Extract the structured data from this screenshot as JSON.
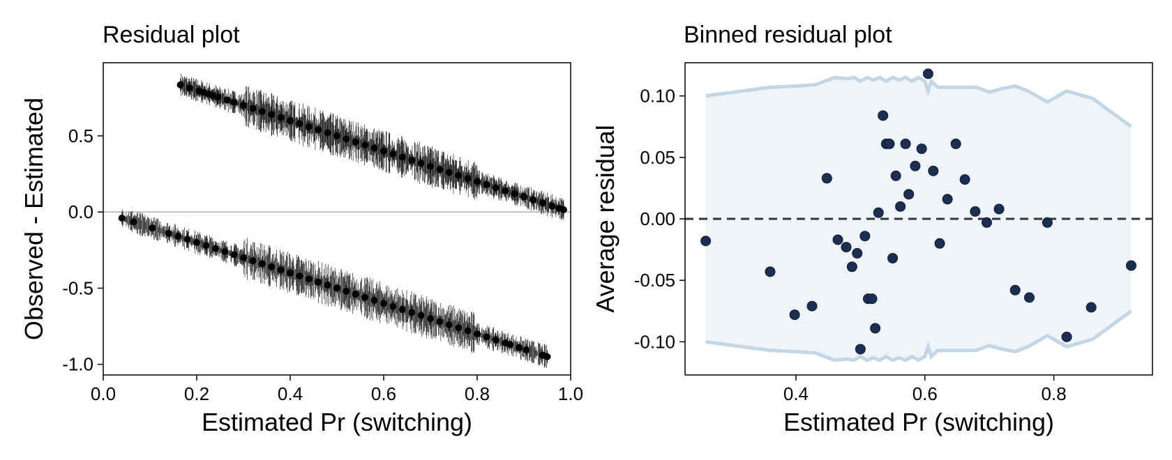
{
  "chart_data": [
    {
      "type": "scatter",
      "title": "Residual plot",
      "xlabel": "Estimated Pr (switching)",
      "ylabel": "Observed - Estimated",
      "xlim": [
        0.0,
        1.0
      ],
      "ylim": [
        -1.07,
        0.98
      ],
      "xticks": [
        "0.0",
        "0.2",
        "0.4",
        "0.6",
        "0.8",
        "1.0"
      ],
      "xtick_values": [
        0.0,
        0.2,
        0.4,
        0.6,
        0.8,
        1.0
      ],
      "yticks": [
        "-1.0",
        "-0.5",
        "0.0",
        "0.5"
      ],
      "ytick_values": [
        -1.0,
        -0.5,
        0.0,
        0.5
      ],
      "reference_line_y": 0.0,
      "grid": false,
      "marker_color": "#000000",
      "reference_line_color": "#b0b0b0",
      "series": [
        {
          "description": "observed = 1 (residual = 1 - estimated)",
          "x": [
            0.165,
            0.185,
            0.205,
            0.215,
            0.225,
            0.235,
            0.245,
            0.265,
            0.28,
            0.3,
            0.32,
            0.34,
            0.36,
            0.38,
            0.4,
            0.42,
            0.44,
            0.46,
            0.48,
            0.5,
            0.52,
            0.54,
            0.56,
            0.58,
            0.6,
            0.62,
            0.64,
            0.66,
            0.68,
            0.7,
            0.72,
            0.74,
            0.76,
            0.78,
            0.8,
            0.82,
            0.84,
            0.86,
            0.88,
            0.9,
            0.92,
            0.94,
            0.96,
            0.975,
            0.985
          ],
          "y": [
            0.835,
            0.815,
            0.795,
            0.785,
            0.775,
            0.765,
            0.755,
            0.735,
            0.72,
            0.7,
            0.68,
            0.66,
            0.64,
            0.62,
            0.6,
            0.58,
            0.56,
            0.54,
            0.52,
            0.5,
            0.48,
            0.46,
            0.44,
            0.42,
            0.4,
            0.38,
            0.36,
            0.34,
            0.32,
            0.3,
            0.28,
            0.26,
            0.24,
            0.22,
            0.2,
            0.18,
            0.16,
            0.14,
            0.12,
            0.1,
            0.08,
            0.06,
            0.04,
            0.025,
            0.015
          ]
        },
        {
          "description": "observed = 0 (residual = -estimated)",
          "x": [
            0.04,
            0.065,
            0.105,
            0.14,
            0.16,
            0.18,
            0.2,
            0.22,
            0.24,
            0.26,
            0.28,
            0.3,
            0.32,
            0.34,
            0.36,
            0.38,
            0.4,
            0.42,
            0.44,
            0.46,
            0.48,
            0.5,
            0.52,
            0.54,
            0.56,
            0.58,
            0.6,
            0.62,
            0.64,
            0.66,
            0.68,
            0.7,
            0.72,
            0.74,
            0.76,
            0.78,
            0.8,
            0.82,
            0.84,
            0.86,
            0.87,
            0.89,
            0.905,
            0.94,
            0.95
          ],
          "y": [
            -0.04,
            -0.065,
            -0.105,
            -0.14,
            -0.16,
            -0.18,
            -0.2,
            -0.22,
            -0.24,
            -0.26,
            -0.28,
            -0.3,
            -0.32,
            -0.34,
            -0.36,
            -0.38,
            -0.4,
            -0.42,
            -0.44,
            -0.46,
            -0.48,
            -0.5,
            -0.52,
            -0.54,
            -0.56,
            -0.58,
            -0.6,
            -0.62,
            -0.64,
            -0.66,
            -0.68,
            -0.7,
            -0.72,
            -0.74,
            -0.76,
            -0.78,
            -0.8,
            -0.82,
            -0.84,
            -0.86,
            -0.87,
            -0.89,
            -0.905,
            -0.94,
            -0.95
          ]
        }
      ]
    },
    {
      "type": "scatter",
      "title": "Binned residual plot",
      "xlabel": "Estimated Pr (switching)",
      "ylabel": "Average residual",
      "xlim": [
        0.228,
        0.953
      ],
      "ylim": [
        -0.127,
        0.127
      ],
      "xticks": [
        "0.4",
        "0.6",
        "0.8"
      ],
      "xtick_values": [
        0.4,
        0.6,
        0.8
      ],
      "yticks": [
        "0.10",
        "0.05",
        "0.00",
        "-0.05",
        "-0.10"
      ],
      "ytick_values": [
        0.1,
        0.05,
        0.0,
        -0.05,
        -0.1
      ],
      "reference_line_y": 0.0,
      "reference_line_style": "dashed",
      "grid": false,
      "point_color": "#1b2f52",
      "band_fill_color": "#eff4f8",
      "band_line_color": "#c2d6e6",
      "band": {
        "x": [
          0.26,
          0.36,
          0.4,
          0.43,
          0.45,
          0.46,
          0.48,
          0.49,
          0.5,
          0.51,
          0.52,
          0.53,
          0.54,
          0.55,
          0.56,
          0.57,
          0.58,
          0.59,
          0.6,
          0.605,
          0.61,
          0.62,
          0.64,
          0.66,
          0.68,
          0.7,
          0.72,
          0.74,
          0.76,
          0.79,
          0.82,
          0.86,
          0.92
        ],
        "upper": [
          0.1,
          0.107,
          0.108,
          0.109,
          0.113,
          0.115,
          0.114,
          0.115,
          0.112,
          0.115,
          0.113,
          0.115,
          0.112,
          0.115,
          0.113,
          0.115,
          0.112,
          0.115,
          0.112,
          0.104,
          0.112,
          0.107,
          0.107,
          0.107,
          0.107,
          0.103,
          0.106,
          0.108,
          0.104,
          0.095,
          0.104,
          0.098,
          0.075
        ],
        "lower": [
          -0.1,
          -0.107,
          -0.108,
          -0.109,
          -0.113,
          -0.115,
          -0.114,
          -0.115,
          -0.112,
          -0.115,
          -0.113,
          -0.115,
          -0.112,
          -0.115,
          -0.113,
          -0.115,
          -0.112,
          -0.115,
          -0.112,
          -0.104,
          -0.112,
          -0.107,
          -0.107,
          -0.107,
          -0.107,
          -0.103,
          -0.106,
          -0.108,
          -0.104,
          -0.095,
          -0.104,
          -0.098,
          -0.075
        ]
      },
      "points": {
        "x": [
          0.26,
          0.36,
          0.398,
          0.425,
          0.448,
          0.465,
          0.478,
          0.487,
          0.495,
          0.5,
          0.507,
          0.512,
          0.518,
          0.523,
          0.528,
          0.535,
          0.54,
          0.545,
          0.55,
          0.555,
          0.562,
          0.57,
          0.575,
          0.585,
          0.595,
          0.605,
          0.613,
          0.623,
          0.635,
          0.648,
          0.662,
          0.678,
          0.696,
          0.715,
          0.74,
          0.762,
          0.79,
          0.82,
          0.858,
          0.92
        ],
        "y": [
          -0.018,
          -0.043,
          -0.078,
          -0.071,
          0.033,
          -0.017,
          -0.023,
          -0.039,
          -0.028,
          -0.106,
          -0.014,
          -0.065,
          -0.065,
          -0.089,
          0.005,
          0.084,
          0.061,
          0.061,
          -0.032,
          0.035,
          0.01,
          0.061,
          0.02,
          0.043,
          0.057,
          0.118,
          0.039,
          -0.02,
          0.016,
          0.061,
          0.032,
          0.006,
          -0.003,
          0.008,
          -0.058,
          -0.064,
          -0.003,
          -0.096,
          -0.072,
          -0.038
        ]
      }
    }
  ]
}
